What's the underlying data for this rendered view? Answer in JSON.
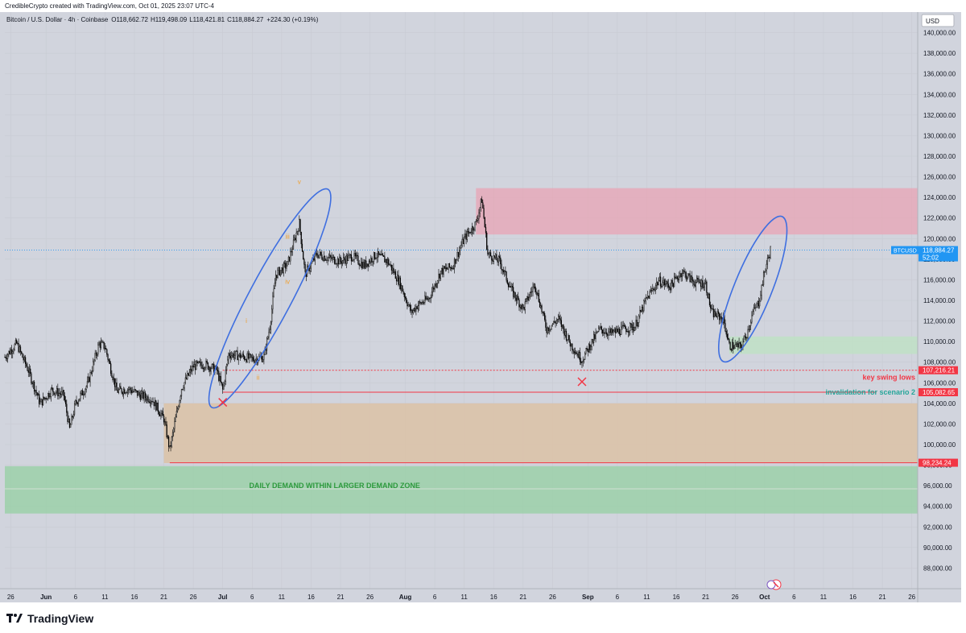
{
  "header": {
    "credit": "CredibleCrypto created with TradingView.com, Oct 01, 2025 23:07 UTC-4"
  },
  "legend": {
    "symbol": "Bitcoin / U.S. Dollar · 4h · Coinbase",
    "o_label": "O",
    "o_value": "118,662.72",
    "h_label": "H",
    "h_value": "119,498.09",
    "l_label": "L",
    "l_value": "118,421.81",
    "c_label": "C",
    "c_value": "118,884.27",
    "change": "+224.30 (+0.19%)"
  },
  "currency": "USD",
  "brand": {
    "name": "TradingView"
  },
  "colors": {
    "background": "#d1d4dd",
    "candle": "#000000",
    "red_line": "#f23645",
    "supply_zone": "#e8a4b4",
    "demand_zone": "#dcc2a6",
    "daily_demand": "#98cfa6",
    "green_box": "#c0e0c6",
    "ellipse": "#3f6fe0",
    "wave_label": "#f0a030",
    "price_tag": "#2196f3",
    "green_text": "#26a69a"
  },
  "chart_data": {
    "type": "candlestick",
    "symbol": "BTCUSD",
    "timeframe": "4h",
    "ylim": [
      86000,
      142000
    ],
    "y_ticks": [
      88000,
      90000,
      92000,
      94000,
      96000,
      98000,
      100000,
      102000,
      104000,
      106000,
      108000,
      110000,
      112000,
      114000,
      116000,
      118000,
      120000,
      122000,
      124000,
      126000,
      128000,
      130000,
      132000,
      134000,
      136000,
      138000,
      140000
    ],
    "y_tick_labels": [
      "88,000.00",
      "90,000.00",
      "92,000.00",
      "94,000.00",
      "96,000.00",
      "98,000.00",
      "100,000.00",
      "102,000.00",
      "104,000.00",
      "106,000.00",
      "108,000.00",
      "110,000.00",
      "112,000.00",
      "114,000.00",
      "116,000.00",
      "118,000.00",
      "120,000.00",
      "122,000.00",
      "124,000.00",
      "126,000.00",
      "128,000.00",
      "130,000.00",
      "132,000.00",
      "134,000.00",
      "136,000.00",
      "138,000.00",
      "140,000.00"
    ],
    "x_range": [
      "2025-05-25",
      "2025-10-27"
    ],
    "x_ticks": [
      {
        "date": "2025-05-26",
        "label": "26",
        "bold": false
      },
      {
        "date": "2025-06-01",
        "label": "Jun",
        "bold": true
      },
      {
        "date": "2025-06-06",
        "label": "6",
        "bold": false
      },
      {
        "date": "2025-06-11",
        "label": "11",
        "bold": false
      },
      {
        "date": "2025-06-16",
        "label": "16",
        "bold": false
      },
      {
        "date": "2025-06-21",
        "label": "21",
        "bold": false
      },
      {
        "date": "2025-06-26",
        "label": "26",
        "bold": false
      },
      {
        "date": "2025-07-01",
        "label": "Jul",
        "bold": true
      },
      {
        "date": "2025-07-06",
        "label": "6",
        "bold": false
      },
      {
        "date": "2025-07-11",
        "label": "11",
        "bold": false
      },
      {
        "date": "2025-07-16",
        "label": "16",
        "bold": false
      },
      {
        "date": "2025-07-21",
        "label": "21",
        "bold": false
      },
      {
        "date": "2025-07-26",
        "label": "26",
        "bold": false
      },
      {
        "date": "2025-08-01",
        "label": "Aug",
        "bold": true
      },
      {
        "date": "2025-08-06",
        "label": "6",
        "bold": false
      },
      {
        "date": "2025-08-11",
        "label": "11",
        "bold": false
      },
      {
        "date": "2025-08-16",
        "label": "16",
        "bold": false
      },
      {
        "date": "2025-08-21",
        "label": "21",
        "bold": false
      },
      {
        "date": "2025-08-26",
        "label": "26",
        "bold": false
      },
      {
        "date": "2025-09-01",
        "label": "Sep",
        "bold": true
      },
      {
        "date": "2025-09-06",
        "label": "6",
        "bold": false
      },
      {
        "date": "2025-09-11",
        "label": "11",
        "bold": false
      },
      {
        "date": "2025-09-16",
        "label": "16",
        "bold": false
      },
      {
        "date": "2025-09-21",
        "label": "21",
        "bold": false
      },
      {
        "date": "2025-09-26",
        "label": "26",
        "bold": false
      },
      {
        "date": "2025-10-01",
        "label": "Oct",
        "bold": true
      },
      {
        "date": "2025-10-06",
        "label": "6",
        "bold": false
      },
      {
        "date": "2025-10-11",
        "label": "11",
        "bold": false
      },
      {
        "date": "2025-10-16",
        "label": "16",
        "bold": false
      },
      {
        "date": "2025-10-21",
        "label": "21",
        "bold": false
      },
      {
        "date": "2025-10-26",
        "label": "26",
        "bold": false
      }
    ],
    "series": [
      {
        "name": "BTCUSD",
        "candles_per_day": 6,
        "start": "2025-05-25",
        "end": "2025-10-02",
        "approx_closes": [
          [
            "2025-05-25",
            108500
          ],
          [
            "2025-05-27",
            109800
          ],
          [
            "2025-05-29",
            107200
          ],
          [
            "2025-05-31",
            104000
          ],
          [
            "2025-06-02",
            105300
          ],
          [
            "2025-06-04",
            104800
          ],
          [
            "2025-06-05",
            101500
          ],
          [
            "2025-06-06",
            104000
          ],
          [
            "2025-06-08",
            105800
          ],
          [
            "2025-06-10",
            109800
          ],
          [
            "2025-06-11",
            109500
          ],
          [
            "2025-06-13",
            105200
          ],
          [
            "2025-06-15",
            105400
          ],
          [
            "2025-06-17",
            104800
          ],
          [
            "2025-06-19",
            104400
          ],
          [
            "2025-06-21",
            102500
          ],
          [
            "2025-06-22",
            99500
          ],
          [
            "2025-06-23",
            102500
          ],
          [
            "2025-06-24",
            105500
          ],
          [
            "2025-06-26",
            107600
          ],
          [
            "2025-06-28",
            107800
          ],
          [
            "2025-06-30",
            107200
          ],
          [
            "2025-07-01",
            105300
          ],
          [
            "2025-07-02",
            108800
          ],
          [
            "2025-07-04",
            108600
          ],
          [
            "2025-07-06",
            108300
          ],
          [
            "2025-07-08",
            108500
          ],
          [
            "2025-07-09",
            111500
          ],
          [
            "2025-07-10",
            116500
          ],
          [
            "2025-07-12",
            117500
          ],
          [
            "2025-07-14",
            121500
          ],
          [
            "2025-07-15",
            116500
          ],
          [
            "2025-07-17",
            118500
          ],
          [
            "2025-07-19",
            118100
          ],
          [
            "2025-07-21",
            117800
          ],
          [
            "2025-07-23",
            118300
          ],
          [
            "2025-07-25",
            117400
          ],
          [
            "2025-07-27",
            118400
          ],
          [
            "2025-07-29",
            117800
          ],
          [
            "2025-07-31",
            115800
          ],
          [
            "2025-08-02",
            112800
          ],
          [
            "2025-08-03",
            113500
          ],
          [
            "2025-08-05",
            114200
          ],
          [
            "2025-08-07",
            116800
          ],
          [
            "2025-08-09",
            117300
          ],
          [
            "2025-08-11",
            120000
          ],
          [
            "2025-08-13",
            121500
          ],
          [
            "2025-08-14",
            123800
          ],
          [
            "2025-08-15",
            118500
          ],
          [
            "2025-08-17",
            117800
          ],
          [
            "2025-08-19",
            115000
          ],
          [
            "2025-08-21",
            113200
          ],
          [
            "2025-08-23",
            115600
          ],
          [
            "2025-08-25",
            111200
          ],
          [
            "2025-08-27",
            112200
          ],
          [
            "2025-08-29",
            109800
          ],
          [
            "2025-08-31",
            108200
          ],
          [
            "2025-09-01",
            109300
          ],
          [
            "2025-09-03",
            111200
          ],
          [
            "2025-09-05",
            110800
          ],
          [
            "2025-09-07",
            111200
          ],
          [
            "2025-09-09",
            111500
          ],
          [
            "2025-09-11",
            114200
          ],
          [
            "2025-09-13",
            115900
          ],
          [
            "2025-09-15",
            115400
          ],
          [
            "2025-09-17",
            116800
          ],
          [
            "2025-09-19",
            115800
          ],
          [
            "2025-09-21",
            115600
          ],
          [
            "2025-09-22",
            112800
          ],
          [
            "2025-09-24",
            112200
          ],
          [
            "2025-09-25",
            109600
          ],
          [
            "2025-09-27",
            109500
          ],
          [
            "2025-09-28",
            110800
          ],
          [
            "2025-09-29",
            112800
          ],
          [
            "2025-09-30",
            113800
          ],
          [
            "2025-10-01",
            116800
          ],
          [
            "2025-10-02",
            118884.27
          ]
        ]
      }
    ],
    "last_price": 118884.27,
    "last_price_label": "BTCUSD",
    "last_price_value": "118,884.27",
    "last_price_countdown": "52:02",
    "zones": [
      {
        "name": "supply-zone",
        "from": "2025-08-13",
        "to": "2025-10-27",
        "low": 120400,
        "high": 124900
      },
      {
        "name": "demand-zone",
        "from": "2025-06-21",
        "to": "2025-10-27",
        "low": 98200,
        "high": 104000
      },
      {
        "name": "daily-demand",
        "from": "2025-05-25",
        "to": "2025-10-27",
        "low": 93300,
        "high": 97900,
        "label": "DAILY DEMAND WITHIN LARGER DEMAND ZONE"
      },
      {
        "name": "green-box",
        "from": "2025-09-25",
        "to": "2025-10-27",
        "low": 108800,
        "high": 110500
      }
    ],
    "lines": [
      {
        "name": "key-swing-lows",
        "price": 107216.21,
        "value_label": "107,216.21",
        "text": "key swing lows",
        "style": "dotted",
        "from": "2025-07-01"
      },
      {
        "name": "invalidation",
        "price": 105082.65,
        "value_label": "105,082.65",
        "text": "invalidation for scenario 2",
        "style": "solid",
        "from": "2025-07-01",
        "to": "2025-10-20"
      },
      {
        "name": "daily-low",
        "price": 98234.24,
        "value_label": "98,234.24",
        "style": "solid",
        "from": "2025-06-22"
      }
    ],
    "wave_labels": [
      {
        "text": "i",
        "date": "2025-07-05",
        "price": 111800
      },
      {
        "text": "ii",
        "date": "2025-07-07",
        "price": 106300
      },
      {
        "text": "iii",
        "date": "2025-07-12",
        "price": 120000
      },
      {
        "text": "iv",
        "date": "2025-07-12",
        "price": 115600
      },
      {
        "text": "v",
        "date": "2025-07-14",
        "price": 125300
      }
    ],
    "x_marks": [
      {
        "date": "2025-07-01",
        "price": 104100
      },
      {
        "date": "2025-08-31",
        "price": 106100
      }
    ],
    "ellipses": [
      {
        "center_date": "2025-07-09",
        "center_price": 114200,
        "rx_days": 3.6,
        "ry_price": 12000,
        "rotation_deg": 28
      },
      {
        "center_date": "2025-09-29",
        "center_price": 115100,
        "rx_days": 3.2,
        "ry_price": 7600,
        "rotation_deg": 22
      }
    ]
  }
}
